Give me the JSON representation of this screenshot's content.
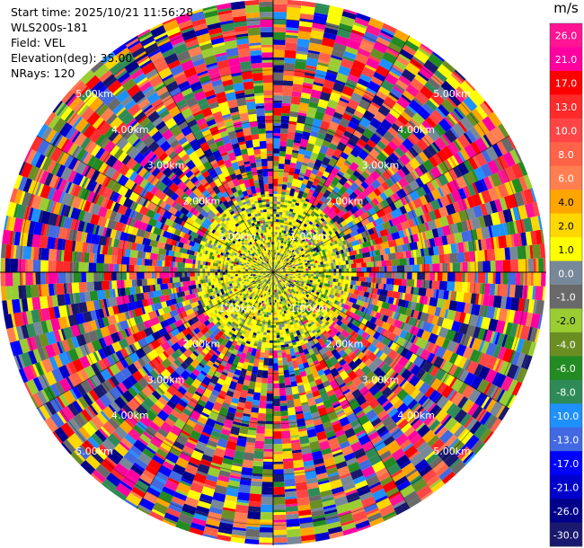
{
  "header": {
    "start_time": "Start time: 2025/10/21 11:56:28",
    "station": "WLS200s-181",
    "field": "Field: VEL",
    "elevation": "Elevation(deg): 35.00",
    "nrays": "NRays: 120"
  },
  "chart_data": {
    "type": "heatmap",
    "subtype": "polar-ppi",
    "field": "VEL",
    "unit": "m/s",
    "nrays": 120,
    "elevation_deg": 35.0,
    "max_range_km": 5.4,
    "range_rings_km": [
      1.0,
      2.0,
      3.0,
      4.0,
      5.0
    ],
    "ring_labels": [
      "1.00km",
      "2.00km",
      "3.00km",
      "4.00km",
      "5.00km"
    ],
    "pattern": "near-range (<~1.5 km) dominated by weak positive velocities (yellow) and weak negatives (green/olive); far range is noisy, spanning full -30 to 26 m/s scale",
    "colorbar": {
      "unit": "m/s",
      "ticks": [
        "26.0",
        "21.0",
        "17.0",
        "13.0",
        "10.0",
        "8.0",
        "6.0",
        "4.0",
        "2.0",
        "1.0",
        "0.0",
        "-1.0",
        "-2.0",
        "-4.0",
        "-6.0",
        "-8.0",
        "-10.0",
        "-13.0",
        "-17.0",
        "-21.0",
        "-26.0",
        "-30.0"
      ],
      "colors": [
        "#ff1493",
        "#ff00a0",
        "#ff0000",
        "#ff2a2a",
        "#ff4545",
        "#ff6347",
        "#ff7f50",
        "#ffa500",
        "#ffd700",
        "#ffff00",
        "#778899",
        "#696969",
        "#9acd32",
        "#6b8e23",
        "#228b22",
        "#2e8b57",
        "#1e90ff",
        "#4169e1",
        "#0000ff",
        "#0000cd",
        "#00008b",
        "#191970"
      ]
    }
  }
}
